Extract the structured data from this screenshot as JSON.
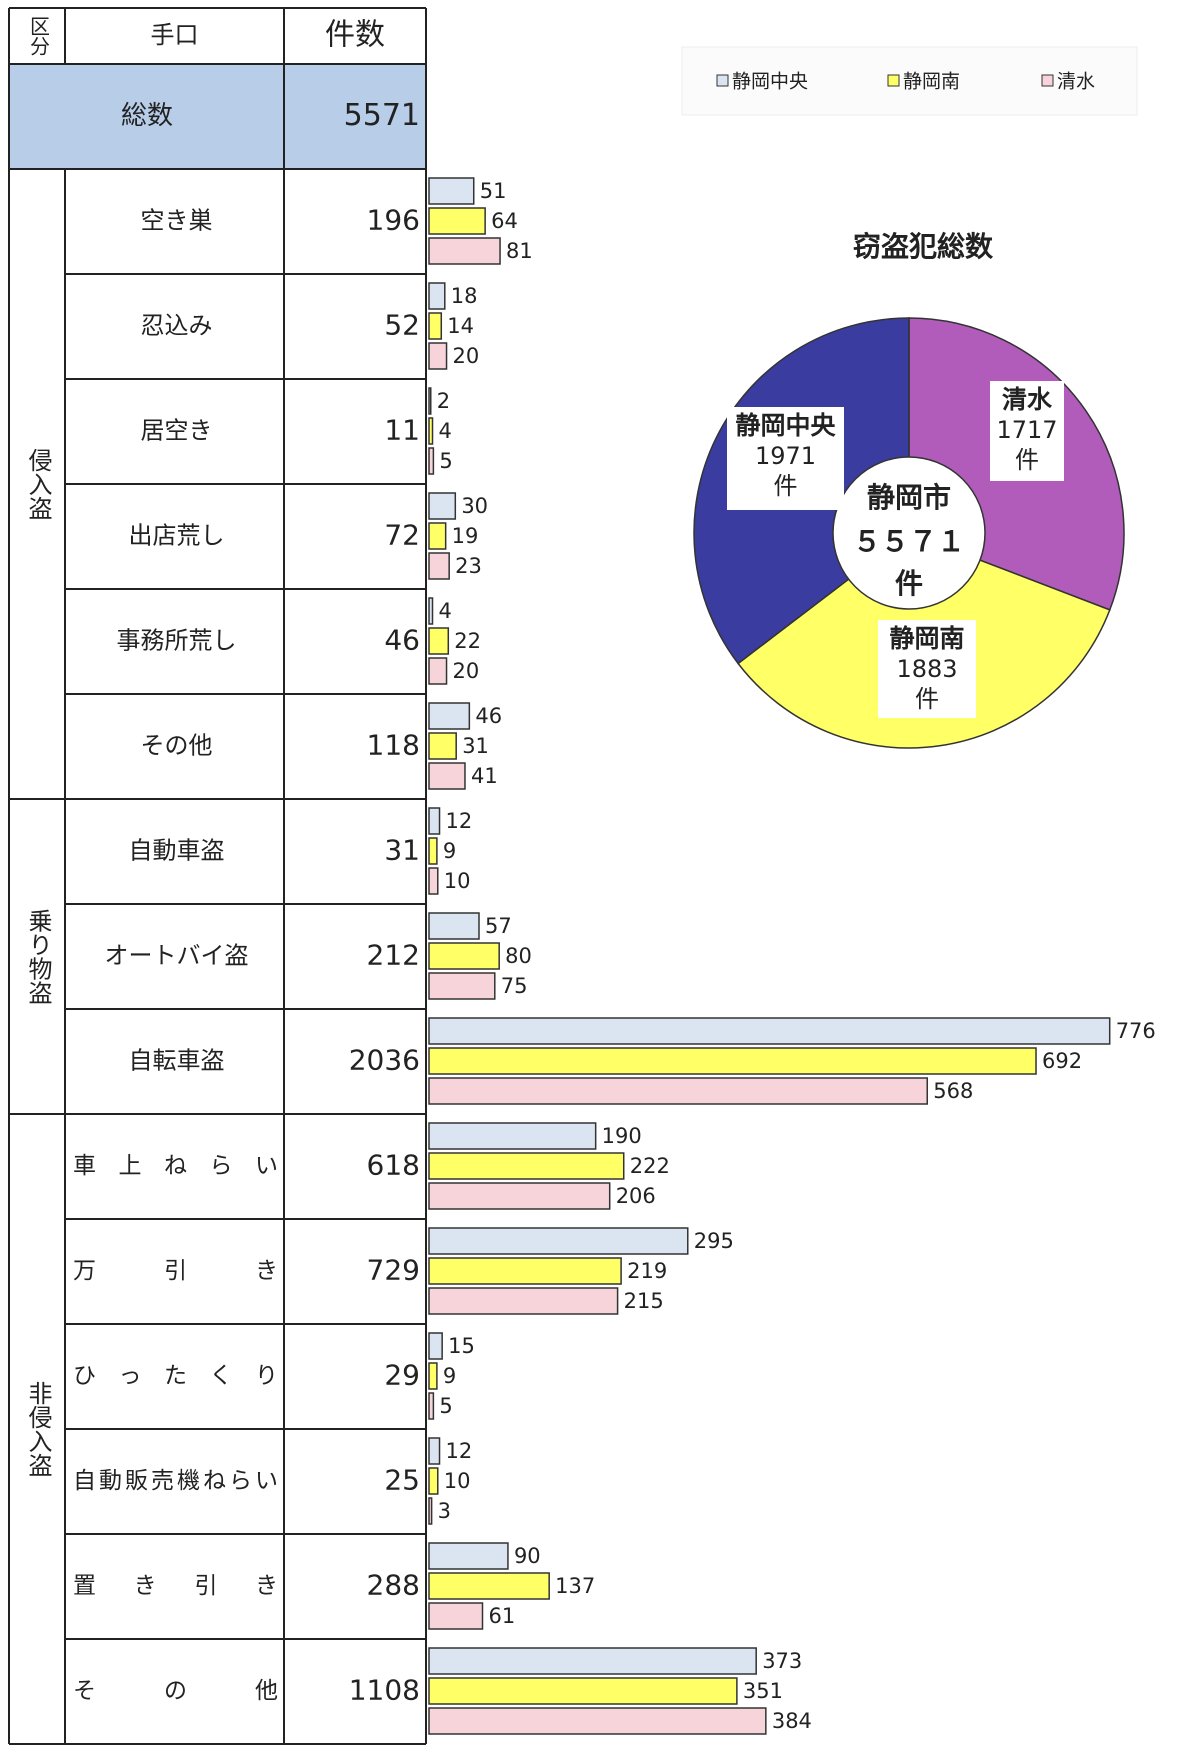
{
  "table": {
    "headers": [
      "区分",
      "手口",
      "件数"
    ],
    "total_label": "総数",
    "total": 5571,
    "groups": [
      {
        "name": "侵入盗",
        "rows": [
          {
            "label": "空き巣",
            "count": 196
          },
          {
            "label": "忍込み",
            "count": 52
          },
          {
            "label": "居空き",
            "count": 11
          },
          {
            "label": "出店荒し",
            "count": 72
          },
          {
            "label": "事務所荒し",
            "count": 46
          },
          {
            "label": "その他",
            "count": 118
          }
        ]
      },
      {
        "name": "乗り物盗",
        "rows": [
          {
            "label": "自動車盗",
            "count": 31
          },
          {
            "label": "オートバイ盗",
            "count": 212
          },
          {
            "label": "自転車盗",
            "count": 2036
          }
        ]
      },
      {
        "name": "非侵入盗",
        "rows": [
          {
            "label": "車上ねらい",
            "count": 618
          },
          {
            "label": "万引き",
            "count": 729
          },
          {
            "label": "ひったくり",
            "count": 29
          },
          {
            "label": "自動販売機ねらい",
            "count": 25
          },
          {
            "label": "置き引き",
            "count": 288
          },
          {
            "label": "その他",
            "count": 1108
          }
        ]
      }
    ]
  },
  "chart_data": [
    {
      "type": "bar",
      "orientation": "horizontal",
      "series": [
        {
          "name": "静岡中央",
          "color": "#dbe5f1",
          "values": [
            51,
            18,
            2,
            30,
            4,
            46,
            12,
            57,
            776,
            190,
            295,
            15,
            12,
            90,
            373
          ]
        },
        {
          "name": "静岡南",
          "color": "#ffff66",
          "values": [
            64,
            14,
            4,
            19,
            22,
            31,
            9,
            80,
            692,
            222,
            219,
            9,
            10,
            137,
            351
          ]
        },
        {
          "name": "清水",
          "color": "#f7d3da",
          "values": [
            81,
            20,
            5,
            23,
            20,
            41,
            10,
            75,
            568,
            206,
            215,
            5,
            3,
            61,
            384
          ]
        }
      ]
    },
    {
      "type": "pie",
      "title": "窃盗犯総数",
      "center_label": "静岡市",
      "center_value": 5571,
      "center_value_label": "５５７１",
      "unit": "件",
      "categories": [
        "清水",
        "静岡南",
        "静岡中央"
      ],
      "values": [
        1717,
        1883,
        1971
      ],
      "colors": [
        "#b15cbb",
        "#ffff66",
        "#3b3c9f"
      ]
    }
  ]
}
